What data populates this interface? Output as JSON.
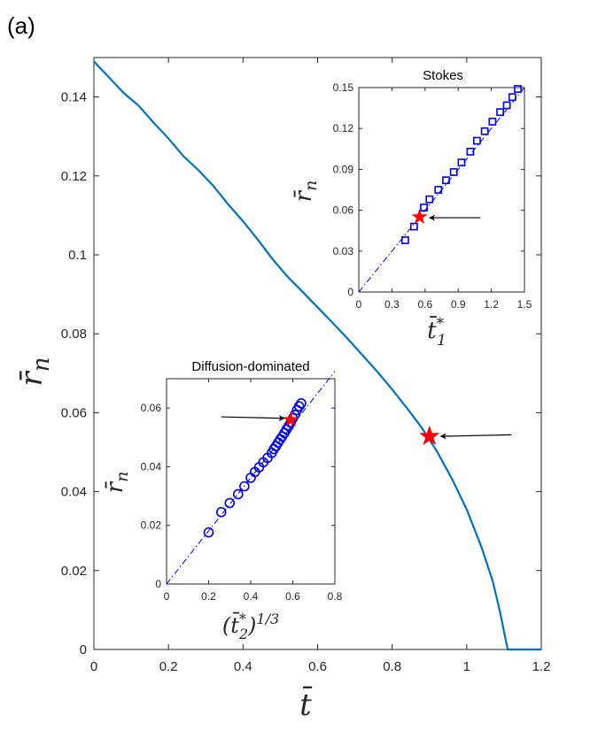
{
  "panel_label": "(a)",
  "colors": {
    "main_line": "#0072BD",
    "marker": "#0000EE",
    "star": "#FF0000",
    "axis": "#262626"
  },
  "chart_data": [
    {
      "id": "main",
      "type": "line",
      "xlabel": "t̄",
      "ylabel": "r̄n",
      "xlim": [
        0,
        1.2
      ],
      "ylim": [
        0,
        0.15
      ],
      "xticks": [
        "0",
        "0.2",
        "0.4",
        "0.6",
        "0.8",
        "1",
        "1.2"
      ],
      "yticks": [
        "0",
        "0.02",
        "0.04",
        "0.06",
        "0.08",
        "0.1",
        "0.12",
        "0.14"
      ],
      "series": [
        {
          "name": "r_n(t)",
          "x": [
            0,
            0.04,
            0.08,
            0.12,
            0.16,
            0.2,
            0.24,
            0.28,
            0.32,
            0.36,
            0.4,
            0.44,
            0.48,
            0.52,
            0.56,
            0.6,
            0.64,
            0.68,
            0.72,
            0.76,
            0.8,
            0.84,
            0.88,
            0.92,
            0.96,
            1.0,
            1.04,
            1.07,
            1.09,
            1.1,
            1.11,
            1.2
          ],
          "y": [
            0.149,
            0.145,
            0.141,
            0.1378,
            0.1335,
            0.1295,
            0.125,
            0.1215,
            0.1175,
            0.1128,
            0.1085,
            0.1038,
            0.0988,
            0.0944,
            0.0906,
            0.0867,
            0.0828,
            0.0788,
            0.0746,
            0.0704,
            0.0659,
            0.0611,
            0.0561,
            0.0502,
            0.0433,
            0.0355,
            0.0258,
            0.0172,
            0.0092,
            0.0045,
            0.0,
            0.0
          ]
        }
      ],
      "star": {
        "x": 0.9,
        "y": 0.054
      },
      "arrow": {
        "from": [
          1.12,
          0.0544
        ],
        "to": [
          0.93,
          0.054
        ]
      }
    },
    {
      "id": "inset_stokes",
      "type": "scatter",
      "title": "Stokes",
      "xlabel": "t̄1*",
      "ylabel": "r̄n",
      "xlim": [
        0,
        1.5
      ],
      "ylim": [
        0,
        0.15
      ],
      "xticks": [
        "0",
        "0.3",
        "0.6",
        "0.9",
        "1.2",
        "1.5"
      ],
      "yticks": [
        "0",
        "0.03",
        "0.06",
        "0.09",
        "0.12",
        "0.15"
      ],
      "line": {
        "x": [
          0,
          1.5
        ],
        "y": [
          0,
          0.15
        ]
      },
      "series": [
        {
          "name": "squares",
          "x": [
            0.42,
            0.5,
            0.59,
            0.64,
            0.72,
            0.79,
            0.86,
            0.93,
            1.01,
            1.07,
            1.14,
            1.21,
            1.28,
            1.34,
            1.39,
            1.44
          ],
          "y": [
            0.038,
            0.048,
            0.062,
            0.068,
            0.075,
            0.082,
            0.088,
            0.095,
            0.103,
            0.111,
            0.118,
            0.125,
            0.132,
            0.137,
            0.143,
            0.149
          ]
        }
      ],
      "star": {
        "x": 0.55,
        "y": 0.055
      },
      "arrow": {
        "from": [
          1.1,
          0.0545
        ],
        "to": [
          0.64,
          0.0545
        ]
      }
    },
    {
      "id": "inset_diffusion",
      "type": "scatter",
      "title": "Diffusion-dominated",
      "xlabel": "(t̄2*)^1/3",
      "ylabel": "r̄n",
      "xlim": [
        0,
        0.8
      ],
      "ylim": [
        0,
        0.07
      ],
      "xticks": [
        "0",
        "0.2",
        "0.4",
        "0.6",
        "0.8"
      ],
      "yticks": [
        "0",
        "0.02",
        "0.04",
        "0.06"
      ],
      "line": {
        "x": [
          0,
          0.8
        ],
        "y": [
          0,
          0.0725
        ]
      },
      "series": [
        {
          "name": "circles",
          "x": [
            0.2,
            0.26,
            0.3,
            0.34,
            0.37,
            0.4,
            0.42,
            0.44,
            0.46,
            0.48,
            0.5,
            0.51,
            0.52,
            0.53,
            0.54,
            0.55,
            0.56,
            0.57,
            0.58,
            0.59,
            0.6,
            0.61,
            0.62,
            0.63,
            0.64
          ],
          "y": [
            0.0176,
            0.0245,
            0.0276,
            0.0306,
            0.0333,
            0.0362,
            0.0382,
            0.0398,
            0.0415,
            0.043,
            0.0447,
            0.046,
            0.047,
            0.0482,
            0.0493,
            0.0503,
            0.0515,
            0.0527,
            0.0538,
            0.055,
            0.0565,
            0.0577,
            0.0593,
            0.0606,
            0.0616
          ]
        }
      ],
      "star": {
        "x": 0.59,
        "y": 0.056
      },
      "arrow": {
        "from": [
          0.26,
          0.057
        ],
        "to": [
          0.56,
          0.0565
        ]
      }
    }
  ]
}
